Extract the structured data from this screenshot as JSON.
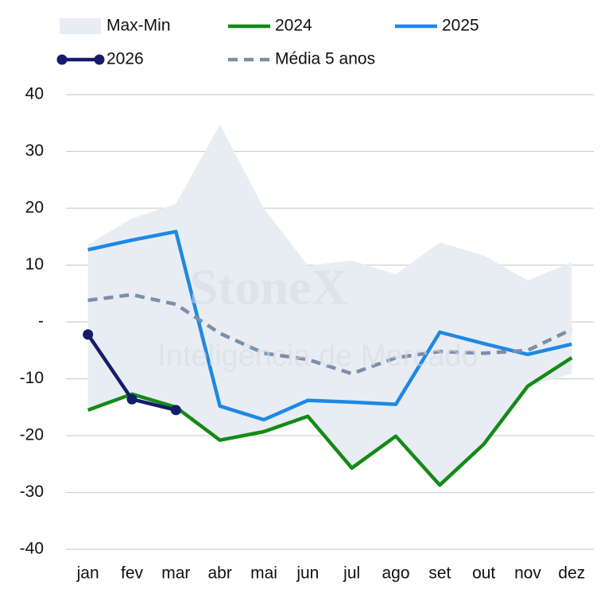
{
  "chart_data": {
    "type": "line",
    "watermark": [
      "StoneX",
      "Inteligência de Mercado"
    ],
    "categories": [
      "jan",
      "fev",
      "mar",
      "abr",
      "mai",
      "jun",
      "jul",
      "ago",
      "set",
      "out",
      "nov",
      "dez"
    ],
    "series": [
      {
        "name": "Max-Min",
        "color": "#e8edf3",
        "kind": "range",
        "max": [
          13.6,
          18.2,
          20.8,
          34.7,
          20.0,
          9.9,
          10.8,
          8.4,
          14.0,
          11.7,
          7.3,
          10.5
        ],
        "min": [
          -15.5,
          -12.7,
          -15.0,
          -20.8,
          -19.3,
          -16.6,
          -25.7,
          -20.1,
          -28.7,
          -21.5,
          -11.3,
          -9.1
        ]
      },
      {
        "name": "2024",
        "color": "#148a18",
        "values": [
          -15.5,
          -12.7,
          -15.0,
          -20.8,
          -19.3,
          -16.6,
          -25.7,
          -20.1,
          -28.7,
          -21.5,
          -11.3,
          -6.3
        ]
      },
      {
        "name": "2025",
        "color": "#1e88e5",
        "values": [
          12.7,
          14.4,
          15.9,
          -14.8,
          -17.2,
          -13.8,
          -14.1,
          -14.5,
          -1.8,
          -3.8,
          -5.7,
          -3.9
        ]
      },
      {
        "name": "2026",
        "color": "#141c6b",
        "markers": true,
        "values": [
          -2.2,
          -13.6,
          -15.5,
          null,
          null,
          null,
          null,
          null,
          null,
          null,
          null,
          null
        ]
      },
      {
        "name": "Média 5 anos",
        "color": "#7a8fab",
        "dashed": true,
        "values": [
          3.8,
          4.8,
          3.1,
          -2.0,
          -5.5,
          -6.6,
          -9.1,
          -6.3,
          -5.2,
          -5.5,
          -5.0,
          -1.3
        ]
      }
    ],
    "ylim": [
      -40,
      40
    ],
    "yticks": [
      40,
      30,
      20,
      10,
      {
        "value": 0,
        "label": "-"
      },
      -10,
      -20,
      -30,
      -40
    ],
    "grid": true
  }
}
